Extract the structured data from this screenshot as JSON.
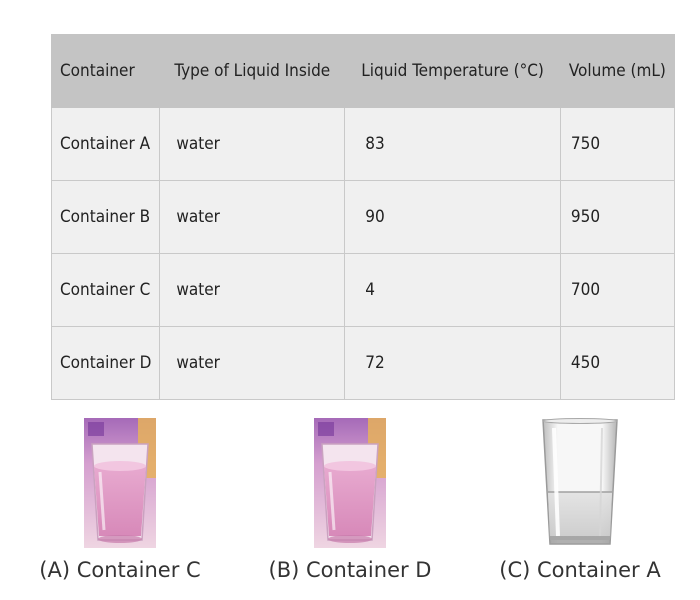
{
  "table": {
    "headers": [
      "Container",
      "Type of Liquid Inside",
      "Liquid Temperature (°C)",
      "Volume (mL)"
    ],
    "rows": [
      [
        "Container A",
        "water",
        "83",
        "750"
      ],
      [
        "Container B",
        "water",
        "90",
        "950"
      ],
      [
        "Container C",
        "water",
        "4",
        "700"
      ],
      [
        "Container D",
        "water",
        "72",
        "450"
      ]
    ]
  },
  "options": [
    {
      "label": "(A) Container C",
      "image": "pink-water-glass-image"
    },
    {
      "label": "(B) Container D",
      "image": "pink-water-glass-image"
    },
    {
      "label": "(C) Container A",
      "image": "clear-water-glass-image"
    }
  ],
  "colors": {
    "header_bg": "#c4c4c4",
    "cell_bg": "#f0f0f0",
    "border": "#c9c9c9"
  }
}
